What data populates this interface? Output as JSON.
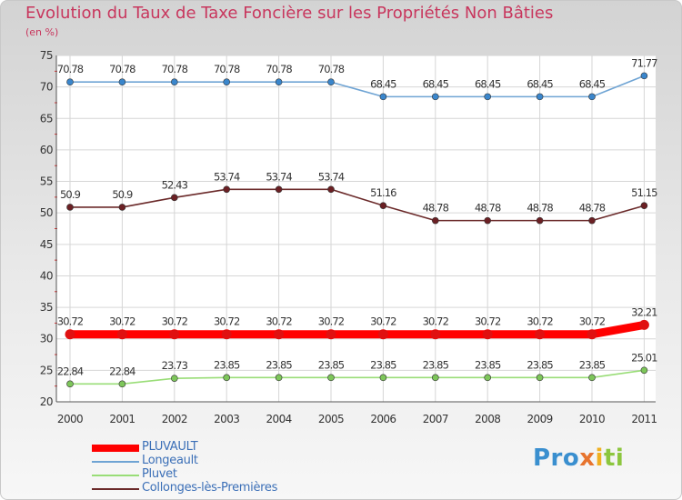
{
  "header": {
    "title": "Evolution du Taux de Taxe Foncière sur les Propriétés Non Bâties",
    "subtitle": "(en %)"
  },
  "logo": {
    "p1": "Pro",
    "p2": "x",
    "p3": "i",
    "p4": "ti"
  },
  "chart_data": {
    "type": "line",
    "title": "Evolution du Taux de Taxe Foncière sur les Propriétés Non Bâties",
    "ylabel": "(en %)",
    "xlabel": "",
    "ylim": [
      20,
      75
    ],
    "yticks": [
      "20",
      "25",
      "30",
      "35",
      "40",
      "45",
      "50",
      "55",
      "60",
      "65",
      "70",
      "75"
    ],
    "x": [
      "2000",
      "2001",
      "2002",
      "2003",
      "2004",
      "2005",
      "2006",
      "2007",
      "2008",
      "2009",
      "2010",
      "2011"
    ],
    "grid": true,
    "legend_position": "bottom-left",
    "series": [
      {
        "name": "PLUVAULT",
        "color": "#ff0000",
        "marker_color": "#e01010",
        "emphasis": true,
        "values": [
          30.72,
          30.72,
          30.72,
          30.72,
          30.72,
          30.72,
          30.72,
          30.72,
          30.72,
          30.72,
          30.72,
          32.21
        ],
        "labels": [
          "30.72",
          "30.72",
          "30.72",
          "30.72",
          "30.72",
          "30.72",
          "30.72",
          "30.72",
          "30.72",
          "30.72",
          "30.72",
          "32.21"
        ]
      },
      {
        "name": "Longeault",
        "color": "#6fa4d4",
        "marker_color": "#3a86cc",
        "emphasis": false,
        "values": [
          70.78,
          70.78,
          70.78,
          70.78,
          70.78,
          70.78,
          68.45,
          68.45,
          68.45,
          68.45,
          68.45,
          71.77
        ],
        "labels": [
          "70.78",
          "70.78",
          "70.78",
          "70.78",
          "70.78",
          "70.78",
          "68.45",
          "68.45",
          "68.45",
          "68.45",
          "68.45",
          "71.77"
        ]
      },
      {
        "name": "Pluvet",
        "color": "#99dd77",
        "marker_color": "#7dc65a",
        "emphasis": false,
        "values": [
          22.84,
          22.84,
          23.73,
          23.85,
          23.85,
          23.85,
          23.85,
          23.85,
          23.85,
          23.85,
          23.85,
          25.01
        ],
        "labels": [
          "22.84",
          "22.84",
          "23.73",
          "23.85",
          "23.85",
          "23.85",
          "23.85",
          "23.85",
          "23.85",
          "23.85",
          "23.85",
          "25.01"
        ]
      },
      {
        "name": "Collonges-lès-Premières",
        "color": "#6b2a2a",
        "marker_color": "#6b2024",
        "emphasis": false,
        "values": [
          50.9,
          50.9,
          52.43,
          53.74,
          53.74,
          53.74,
          51.16,
          48.78,
          48.78,
          48.78,
          48.78,
          51.15
        ],
        "labels": [
          "50.9",
          "50.9",
          "52.43",
          "53.74",
          "53.74",
          "53.74",
          "51.16",
          "48.78",
          "48.78",
          "48.78",
          "48.78",
          "51.15"
        ]
      }
    ]
  }
}
